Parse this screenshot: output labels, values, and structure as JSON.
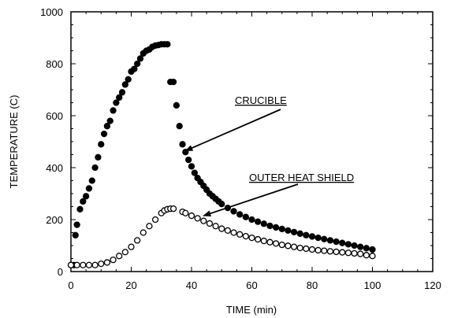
{
  "chart_data": {
    "type": "scatter",
    "xlabel": "TIME (min)",
    "ylabel": "TEMPERATURE (C)",
    "xlim": [
      0,
      120
    ],
    "ylim": [
      0,
      1000
    ],
    "xticks": [
      0,
      20,
      40,
      60,
      80,
      100,
      120
    ],
    "yticks": [
      0,
      200,
      400,
      600,
      800,
      1000
    ],
    "grid": false,
    "series": [
      {
        "marker": "filled-circle",
        "color": "#000000",
        "points": [
          [
            0,
            25
          ],
          [
            1,
            25
          ],
          [
            1.5,
            140
          ],
          [
            2,
            180
          ],
          [
            3,
            240
          ],
          [
            4,
            270
          ],
          [
            5,
            290
          ],
          [
            6,
            320
          ],
          [
            7,
            350
          ],
          [
            8,
            400
          ],
          [
            9,
            440
          ],
          [
            10,
            490
          ],
          [
            11,
            530
          ],
          [
            12,
            560
          ],
          [
            13,
            580
          ],
          [
            14,
            620
          ],
          [
            15,
            650
          ],
          [
            16,
            670
          ],
          [
            17,
            690
          ],
          [
            18,
            720
          ],
          [
            19,
            740
          ],
          [
            20,
            770
          ],
          [
            21,
            780
          ],
          [
            22,
            800
          ],
          [
            23,
            820
          ],
          [
            24,
            840
          ],
          [
            25,
            850
          ],
          [
            26,
            855
          ],
          [
            27,
            865
          ],
          [
            28,
            870
          ],
          [
            29,
            872
          ],
          [
            30,
            875
          ],
          [
            31,
            875
          ],
          [
            32,
            875
          ],
          [
            33,
            730
          ],
          [
            34,
            730
          ],
          [
            35,
            640
          ],
          [
            36,
            560
          ],
          [
            37,
            490
          ],
          [
            38,
            460
          ],
          [
            39,
            430
          ],
          [
            40,
            405
          ],
          [
            41,
            380
          ],
          [
            42,
            360
          ],
          [
            43,
            345
          ],
          [
            44,
            330
          ],
          [
            45,
            315
          ],
          [
            46,
            300
          ],
          [
            47,
            290
          ],
          [
            48,
            280
          ],
          [
            49,
            270
          ],
          [
            50,
            260
          ],
          [
            52,
            245
          ],
          [
            54,
            232
          ],
          [
            56,
            220
          ],
          [
            58,
            210
          ],
          [
            60,
            200
          ],
          [
            62,
            192
          ],
          [
            64,
            184
          ],
          [
            66,
            176
          ],
          [
            68,
            170
          ],
          [
            70,
            164
          ],
          [
            72,
            158
          ],
          [
            74,
            152
          ],
          [
            76,
            146
          ],
          [
            78,
            140
          ],
          [
            80,
            135
          ],
          [
            82,
            130
          ],
          [
            84,
            125
          ],
          [
            86,
            120
          ],
          [
            88,
            115
          ],
          [
            90,
            110
          ],
          [
            92,
            105
          ],
          [
            94,
            100
          ],
          [
            96,
            95
          ],
          [
            98,
            90
          ],
          [
            100,
            85
          ]
        ]
      },
      {
        "marker": "open-circle",
        "color": "#000000",
        "points": [
          [
            0,
            25
          ],
          [
            2,
            25
          ],
          [
            4,
            25
          ],
          [
            6,
            25
          ],
          [
            8,
            25
          ],
          [
            10,
            30
          ],
          [
            12,
            35
          ],
          [
            14,
            45
          ],
          [
            16,
            60
          ],
          [
            18,
            75
          ],
          [
            20,
            95
          ],
          [
            22,
            120
          ],
          [
            24,
            150
          ],
          [
            26,
            175
          ],
          [
            28,
            200
          ],
          [
            30,
            225
          ],
          [
            31,
            235
          ],
          [
            32,
            240
          ],
          [
            33,
            242
          ],
          [
            34,
            242
          ],
          [
            37,
            230
          ],
          [
            38,
            225
          ],
          [
            40,
            215
          ],
          [
            42,
            205
          ],
          [
            44,
            195
          ],
          [
            46,
            185
          ],
          [
            48,
            175
          ],
          [
            50,
            165
          ],
          [
            52,
            158
          ],
          [
            54,
            150
          ],
          [
            56,
            143
          ],
          [
            58,
            136
          ],
          [
            60,
            130
          ],
          [
            62,
            124
          ],
          [
            64,
            118
          ],
          [
            66,
            113
          ],
          [
            68,
            108
          ],
          [
            70,
            103
          ],
          [
            72,
            99
          ],
          [
            74,
            95
          ],
          [
            76,
            91
          ],
          [
            78,
            88
          ],
          [
            80,
            85
          ],
          [
            82,
            82
          ],
          [
            84,
            80
          ],
          [
            86,
            78
          ],
          [
            88,
            76
          ],
          [
            90,
            74
          ],
          [
            92,
            72
          ],
          [
            94,
            70
          ],
          [
            96,
            68
          ],
          [
            98,
            63
          ],
          [
            100,
            60
          ]
        ]
      }
    ],
    "annotations": [
      {
        "text": "CRUCIBLE",
        "arrow_to": [
          38,
          465
        ]
      },
      {
        "text": "OUTER HEAT SHIELD",
        "arrow_to": [
          44,
          215
        ]
      }
    ]
  }
}
